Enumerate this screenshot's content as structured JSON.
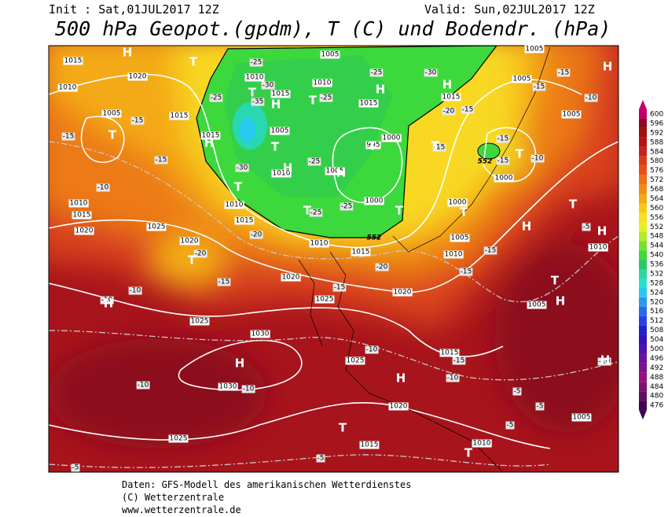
{
  "header": {
    "init": "Init : Sat,01JUL2017 12Z",
    "valid": "Valid: Sun,02JUL2017 12Z",
    "title": "500 hPa Geopot.(gpdm), T (C) und Bodendr. (hPa)"
  },
  "map": {
    "pressure_labels": [
      1015,
      1020,
      1010,
      1005,
      1015,
      1010,
      1015,
      1005,
      1010,
      1015,
      1005,
      1015,
      1010,
      1005,
      1000,
      1000,
      1010,
      1015,
      1020,
      1025,
      1020,
      1010,
      1015,
      1010,
      1015,
      1020,
      1025,
      1020,
      1025,
      1030,
      1030,
      1025,
      1020,
      1025,
      1015,
      1010,
      1015,
      1005,
      1010,
      1005,
      1000,
      1000,
      1005,
      1005,
      1015,
      1005,
      1010,
      1005,
      995
    ],
    "temperature_labels": [
      -25,
      -30,
      -35,
      -25,
      -25,
      -25,
      -30,
      -15,
      -15,
      -15,
      -10,
      -20,
      -15,
      -15,
      -15,
      -10,
      -25,
      -25,
      -20,
      -20,
      -15,
      -10,
      -10,
      -15,
      -20,
      -15,
      -15,
      -10,
      -15,
      -10,
      -10,
      -10,
      -5,
      -5,
      -5,
      -5,
      -5,
      -5,
      -10,
      -15,
      -15,
      -15,
      -10,
      -30,
      -25
    ],
    "height_labels": [
      552,
      552
    ],
    "centers": [
      "H",
      "H",
      "H",
      "H",
      "H",
      "H",
      "H",
      "H",
      "H",
      "H",
      "H",
      "H",
      "H",
      "H",
      "H",
      "T",
      "T",
      "T",
      "T",
      "T",
      "T",
      "T",
      "T",
      "T",
      "T",
      "T",
      "T",
      "T",
      "T",
      "T",
      "T",
      "T"
    ]
  },
  "colorbar": {
    "ticks": [
      600,
      596,
      592,
      588,
      584,
      580,
      576,
      572,
      568,
      564,
      560,
      556,
      552,
      548,
      544,
      540,
      536,
      532,
      528,
      524,
      520,
      516,
      512,
      508,
      504,
      500,
      496,
      492,
      488,
      484,
      480,
      476
    ],
    "colors": [
      "#c0006a",
      "#8c0a1e",
      "#a01010",
      "#b41414",
      "#c82020",
      "#dc3c14",
      "#e85014",
      "#f07014",
      "#f08c14",
      "#f4a814",
      "#f8c818",
      "#f8e020",
      "#e8f020",
      "#b4ec28",
      "#78e030",
      "#3cd83c",
      "#28c864",
      "#28d8a0",
      "#28e0d0",
      "#28c8f0",
      "#2898f0",
      "#2868f0",
      "#2840e8",
      "#2020d0",
      "#3010c0",
      "#5010b0",
      "#6810a0",
      "#801090",
      "#981080",
      "#801070",
      "#601060",
      "#400050"
    ]
  },
  "footer": {
    "line1": "Daten: GFS-Modell des amerikanischen Wetterdienstes",
    "line2": "(C) Wetterzentrale",
    "line3": "www.wetterzentrale.de"
  }
}
